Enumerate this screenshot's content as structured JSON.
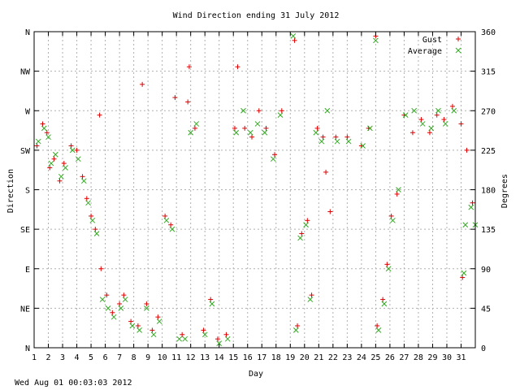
{
  "chart_data": {
    "type": "scatter",
    "title": "Wind Direction ending 31 July 2012",
    "xlabel": "Day",
    "ylabel_left": "Direction",
    "ylabel_right": "Degrees",
    "timestamp": "Wed Aug 01 00:03:03 2012",
    "xlim": [
      1,
      32
    ],
    "ylim": [
      0,
      360
    ],
    "grid": true,
    "legend_position": "top-right",
    "x_ticks": [
      1,
      2,
      3,
      4,
      5,
      6,
      7,
      8,
      9,
      10,
      11,
      12,
      13,
      14,
      15,
      16,
      17,
      18,
      19,
      20,
      21,
      22,
      23,
      24,
      25,
      26,
      27,
      28,
      29,
      30,
      31
    ],
    "left_ticks": [
      {
        "value": 0,
        "label": "N"
      },
      {
        "value": 45,
        "label": "NE"
      },
      {
        "value": 90,
        "label": "E"
      },
      {
        "value": 135,
        "label": "SE"
      },
      {
        "value": 180,
        "label": "S"
      },
      {
        "value": 225,
        "label": "SW"
      },
      {
        "value": 270,
        "label": "W"
      },
      {
        "value": 315,
        "label": "NW"
      },
      {
        "value": 360,
        "label": "N"
      }
    ],
    "right_ticks": [
      0,
      45,
      90,
      135,
      180,
      225,
      270,
      315,
      360
    ],
    "colors": {
      "gust": "#dd0000",
      "average": "#33aa22",
      "overlap": "#996622",
      "grid": "#b0b0b0",
      "axis": "#000000"
    },
    "series": [
      {
        "name": "Gust",
        "marker": "plus",
        "points": [
          [
            1.2,
            230
          ],
          [
            1.6,
            255
          ],
          [
            1.9,
            245
          ],
          [
            2.1,
            205
          ],
          [
            2.4,
            215
          ],
          [
            2.8,
            190
          ],
          [
            3.1,
            210
          ],
          [
            3.6,
            230
          ],
          [
            4.0,
            225
          ],
          [
            4.4,
            195
          ],
          [
            4.7,
            170
          ],
          [
            5.0,
            150
          ],
          [
            5.3,
            135
          ],
          [
            5.6,
            265
          ],
          [
            5.7,
            90
          ],
          [
            6.1,
            60
          ],
          [
            6.5,
            40
          ],
          [
            7.0,
            50
          ],
          [
            7.3,
            60
          ],
          [
            7.8,
            30
          ],
          [
            8.3,
            25
          ],
          [
            8.6,
            300
          ],
          [
            8.9,
            50
          ],
          [
            9.3,
            20
          ],
          [
            9.7,
            35
          ],
          [
            10.2,
            150
          ],
          [
            10.6,
            140
          ],
          [
            10.9,
            285
          ],
          [
            11.4,
            15
          ],
          [
            11.8,
            280
          ],
          [
            11.9,
            320
          ],
          [
            12.3,
            250
          ],
          [
            12.9,
            20
          ],
          [
            13.4,
            55
          ],
          [
            13.9,
            10
          ],
          [
            14.5,
            15
          ],
          [
            15.1,
            250
          ],
          [
            15.3,
            320
          ],
          [
            15.8,
            250
          ],
          [
            16.3,
            240
          ],
          [
            16.8,
            270
          ],
          [
            17.3,
            250
          ],
          [
            17.9,
            220
          ],
          [
            18.4,
            270
          ],
          [
            19.3,
            350
          ],
          [
            19.5,
            25
          ],
          [
            19.8,
            130
          ],
          [
            20.2,
            145
          ],
          [
            20.5,
            60
          ],
          [
            20.9,
            250
          ],
          [
            21.3,
            240
          ],
          [
            21.5,
            200
          ],
          [
            21.8,
            155
          ],
          [
            22.2,
            240
          ],
          [
            23.0,
            240
          ],
          [
            24.0,
            230
          ],
          [
            24.5,
            250
          ],
          [
            25.0,
            355
          ],
          [
            25.1,
            25
          ],
          [
            25.5,
            55
          ],
          [
            25.8,
            95
          ],
          [
            26.1,
            150
          ],
          [
            26.5,
            175
          ],
          [
            27.0,
            265
          ],
          [
            27.6,
            245
          ],
          [
            28.2,
            260
          ],
          [
            28.8,
            245
          ],
          [
            29.3,
            265
          ],
          [
            29.8,
            260
          ],
          [
            30.4,
            275
          ],
          [
            31.0,
            255
          ],
          [
            31.1,
            80
          ],
          [
            31.4,
            225
          ],
          [
            31.8,
            165
          ]
        ]
      },
      {
        "name": "Average",
        "marker": "cross",
        "points": [
          [
            1.3,
            235
          ],
          [
            1.7,
            250
          ],
          [
            2.0,
            240
          ],
          [
            2.2,
            210
          ],
          [
            2.5,
            220
          ],
          [
            2.9,
            195
          ],
          [
            3.2,
            205
          ],
          [
            3.7,
            225
          ],
          [
            4.1,
            215
          ],
          [
            4.5,
            190
          ],
          [
            4.8,
            165
          ],
          [
            5.1,
            145
          ],
          [
            5.4,
            130
          ],
          [
            5.8,
            55
          ],
          [
            6.2,
            45
          ],
          [
            6.6,
            35
          ],
          [
            7.1,
            45
          ],
          [
            7.4,
            55
          ],
          [
            7.9,
            25
          ],
          [
            8.4,
            20
          ],
          [
            8.9,
            45
          ],
          [
            9.4,
            15
          ],
          [
            9.8,
            30
          ],
          [
            10.3,
            145
          ],
          [
            10.7,
            135
          ],
          [
            11.2,
            10
          ],
          [
            11.6,
            10
          ],
          [
            12.0,
            245
          ],
          [
            12.4,
            255
          ],
          [
            13.0,
            15
          ],
          [
            13.5,
            50
          ],
          [
            14.0,
            5
          ],
          [
            14.6,
            10
          ],
          [
            15.2,
            245
          ],
          [
            15.7,
            270
          ],
          [
            16.2,
            245
          ],
          [
            16.7,
            255
          ],
          [
            17.2,
            245
          ],
          [
            17.8,
            215
          ],
          [
            18.3,
            265
          ],
          [
            19.2,
            355
          ],
          [
            19.4,
            20
          ],
          [
            19.7,
            125
          ],
          [
            20.1,
            140
          ],
          [
            20.4,
            55
          ],
          [
            20.8,
            245
          ],
          [
            21.2,
            235
          ],
          [
            21.6,
            270
          ],
          [
            22.3,
            235
          ],
          [
            23.1,
            235
          ],
          [
            24.1,
            230
          ],
          [
            24.6,
            250
          ],
          [
            25.0,
            350
          ],
          [
            25.2,
            20
          ],
          [
            25.6,
            50
          ],
          [
            25.9,
            90
          ],
          [
            26.2,
            145
          ],
          [
            26.6,
            180
          ],
          [
            27.1,
            265
          ],
          [
            27.7,
            270
          ],
          [
            28.3,
            255
          ],
          [
            28.9,
            250
          ],
          [
            29.4,
            270
          ],
          [
            29.9,
            255
          ],
          [
            30.5,
            270
          ],
          [
            31.2,
            85
          ],
          [
            31.3,
            140
          ],
          [
            31.7,
            160
          ],
          [
            32.0,
            140
          ]
        ]
      }
    ]
  }
}
